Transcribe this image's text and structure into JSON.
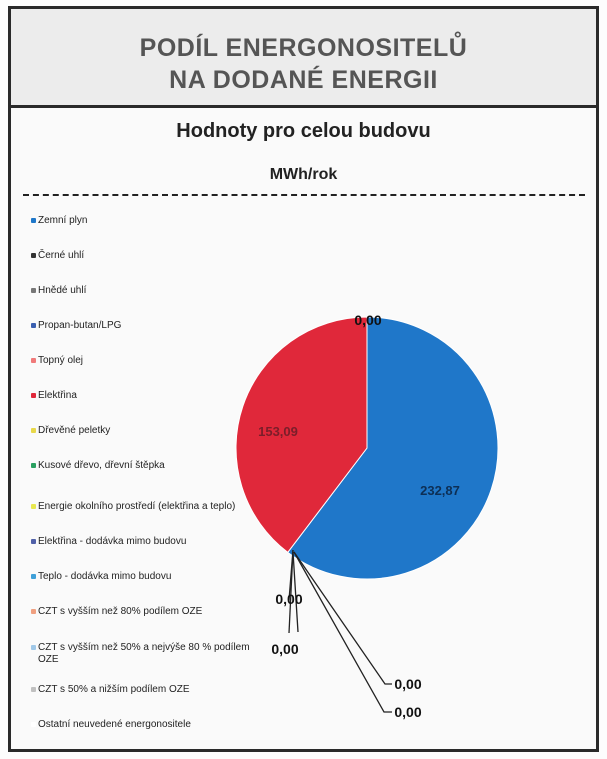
{
  "title": {
    "line1": "PODÍL ENERGONOSITELŮ",
    "line2": "NA DODANÉ ENERGII"
  },
  "subtitle": "Hodnoty pro celou budovu",
  "unit": "MWh/rok",
  "chart_data": {
    "type": "pie",
    "title": "PODÍL ENERGONOSITELŮ NA DODANÉ ENERGII",
    "subtitle": "Hodnoty pro celou budovu",
    "unit": "MWh/rok",
    "legend_position": "left",
    "categories": [
      "Zemní plyn",
      "Černé uhlí",
      "Hnědé uhlí",
      "Propan-butan/LPG",
      "Topný olej",
      "Elektřina",
      "Dřevěné peletky",
      "Kusové dřevo, dřevní štěpka",
      "Energie okolního prostředí (elektřina a teplo)",
      "Elektřina - dodávka mimo budovu",
      "Teplo - dodávka mimo budovu",
      "CZT s vyšším než 80% podílem OZE",
      "CZT s vyšším než 50% a nejvýše 80 % podílem OZE",
      "CZT s 50% a nižším podílem OZE",
      "Ostatní neuvedené energonositele"
    ],
    "colors": [
      "#1f77c9",
      "#333333",
      "#777777",
      "#3a5fb0",
      "#f07a7a",
      "#e0283a",
      "#e8d84a",
      "#2aa060",
      "#e8e850",
      "#5060a8",
      "#40a0d8",
      "#f0a080",
      "#a0c8e8",
      "#c0c0c0",
      "#ffffff"
    ],
    "slices": [
      {
        "label": "Zemní plyn",
        "value": 232.87,
        "display": "232,87",
        "color": "#1f77c9"
      },
      {
        "label": "Elektřina",
        "value": 153.09,
        "display": "153,09",
        "color": "#e0283a"
      }
    ],
    "zero_labels": [
      "0,00",
      "0,00",
      "0,00",
      "0,00",
      "0,00"
    ]
  }
}
